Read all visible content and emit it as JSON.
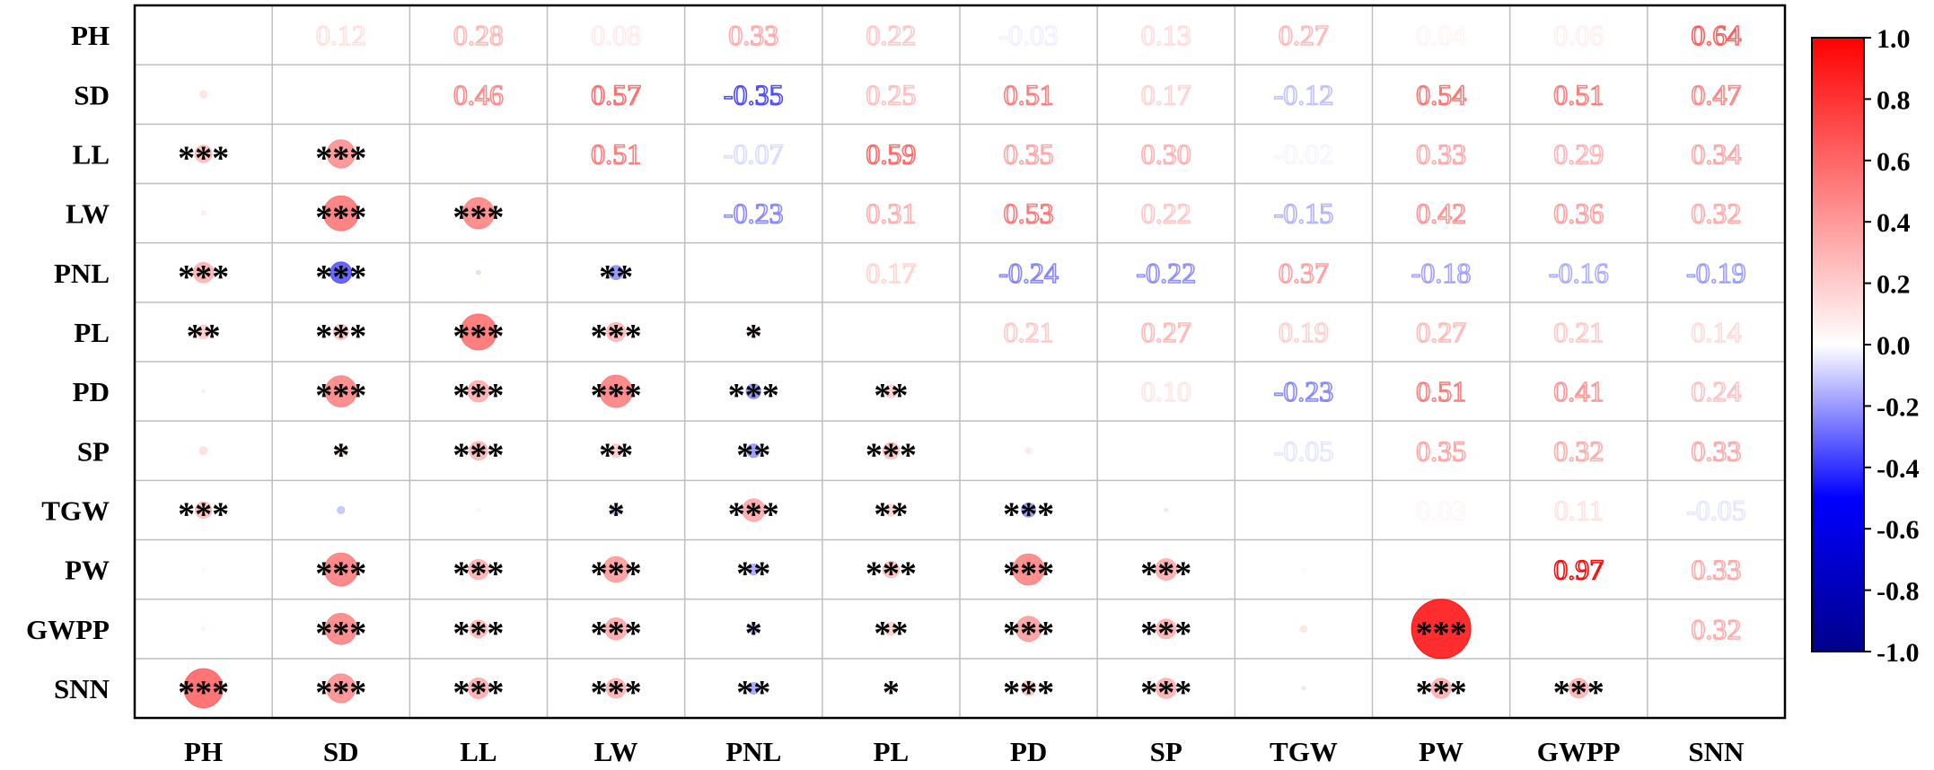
{
  "chart_data": {
    "type": "heatmap",
    "variables": [
      "PH",
      "SD",
      "LL",
      "LW",
      "PNL",
      "PL",
      "PD",
      "SP",
      "TGW",
      "PW",
      "GWPP",
      "SNN"
    ],
    "row_labels": [
      "PH",
      "SD",
      "LL",
      "LW",
      "PNL",
      "PL",
      "PD",
      "SP",
      "TGW",
      "PW",
      "GWPP",
      "SNN"
    ],
    "col_labels": [
      "PH",
      "SD",
      "LL",
      "LW",
      "PNL",
      "PL",
      "PD",
      "SP",
      "TGW",
      "PW",
      "GWPP",
      "SNN"
    ],
    "upper_triangle": "printed correlation coefficients",
    "lower_triangle": "circles sized and colored by correlation with significance stars",
    "matrix": [
      [
        null,
        0.12,
        0.28,
        0.08,
        0.33,
        0.22,
        -0.03,
        0.13,
        0.27,
        0.04,
        0.06,
        0.64
      ],
      [
        0.12,
        null,
        0.46,
        0.57,
        -0.35,
        0.25,
        0.51,
        0.17,
        -0.12,
        0.54,
        0.51,
        0.47
      ],
      [
        0.28,
        0.46,
        null,
        0.51,
        -0.07,
        0.59,
        0.35,
        0.3,
        -0.02,
        0.33,
        0.29,
        0.34
      ],
      [
        0.08,
        0.57,
        0.51,
        null,
        -0.23,
        0.31,
        0.53,
        0.22,
        -0.15,
        0.42,
        0.36,
        0.32
      ],
      [
        0.33,
        -0.35,
        -0.07,
        -0.23,
        null,
        0.17,
        -0.24,
        -0.22,
        0.37,
        -0.18,
        -0.16,
        -0.19
      ],
      [
        0.22,
        0.25,
        0.59,
        0.31,
        0.17,
        null,
        0.21,
        0.27,
        0.19,
        0.27,
        0.21,
        0.14
      ],
      [
        -0.03,
        0.51,
        0.35,
        0.53,
        -0.24,
        0.21,
        null,
        0.1,
        -0.23,
        0.51,
        0.41,
        0.24
      ],
      [
        0.13,
        0.17,
        0.3,
        0.22,
        -0.22,
        0.27,
        0.1,
        null,
        -0.05,
        0.35,
        0.32,
        0.33
      ],
      [
        0.27,
        -0.12,
        -0.02,
        -0.15,
        0.37,
        0.19,
        -0.23,
        -0.05,
        null,
        0.03,
        0.11,
        -0.05
      ],
      [
        0.04,
        0.54,
        0.33,
        0.42,
        -0.18,
        0.27,
        0.51,
        0.35,
        0.03,
        null,
        0.97,
        0.33
      ],
      [
        0.06,
        0.51,
        0.29,
        0.36,
        -0.16,
        0.21,
        0.41,
        0.32,
        0.11,
        0.97,
        null,
        0.32
      ],
      [
        0.64,
        0.47,
        0.34,
        0.32,
        -0.19,
        0.14,
        0.24,
        0.33,
        -0.05,
        0.33,
        0.32,
        null
      ]
    ],
    "value_labels": [
      [
        null,
        "0.12",
        "0.28",
        "0.08",
        "0.33",
        "0.22",
        "-0.03",
        "0.13",
        "0.27",
        "0.04",
        "0.06",
        "0.64"
      ],
      [
        null,
        null,
        "0.46",
        "0.57",
        "-0.35",
        "0.25",
        "0.51",
        "0.17",
        "-0.12",
        "0.54",
        "0.51",
        "0.47"
      ],
      [
        null,
        null,
        null,
        "0.51",
        "-0.07",
        "0.59",
        "0.35",
        "0.30",
        "-0.02",
        "0.33",
        "0.29",
        "0.34"
      ],
      [
        null,
        null,
        null,
        null,
        "-0.23",
        "0.31",
        "0.53",
        "0.22",
        "-0.15",
        "0.42",
        "0.36",
        "0.32"
      ],
      [
        null,
        null,
        null,
        null,
        null,
        "0.17",
        "-0.24",
        "-0.22",
        "0.37",
        "-0.18",
        "-0.16",
        "-0.19"
      ],
      [
        null,
        null,
        null,
        null,
        null,
        null,
        "0.21",
        "0.27",
        "0.19",
        "0.27",
        "0.21",
        "0.14"
      ],
      [
        null,
        null,
        null,
        null,
        null,
        null,
        null,
        "0.10",
        "-0.23",
        "0.51",
        "0.41",
        "0.24"
      ],
      [
        null,
        null,
        null,
        null,
        null,
        null,
        null,
        null,
        "-0.05",
        "0.35",
        "0.32",
        "0.33"
      ],
      [
        null,
        null,
        null,
        null,
        null,
        null,
        null,
        null,
        null,
        "0.03",
        "0.11",
        "-0.05"
      ],
      [
        null,
        null,
        null,
        null,
        null,
        null,
        null,
        null,
        null,
        null,
        "0.97",
        "0.33"
      ],
      [
        null,
        null,
        null,
        null,
        null,
        null,
        null,
        null,
        null,
        null,
        null,
        "0.32"
      ],
      [
        null,
        null,
        null,
        null,
        null,
        null,
        null,
        null,
        null,
        null,
        null,
        null
      ]
    ],
    "significance": [
      [
        null,
        null,
        null,
        null,
        null,
        null,
        null,
        null,
        null,
        null,
        null,
        null
      ],
      [
        "",
        null,
        null,
        null,
        null,
        null,
        null,
        null,
        null,
        null,
        null,
        null
      ],
      [
        "***",
        "***",
        null,
        null,
        null,
        null,
        null,
        null,
        null,
        null,
        null,
        null
      ],
      [
        "",
        "***",
        "***",
        null,
        null,
        null,
        null,
        null,
        null,
        null,
        null,
        null
      ],
      [
        "***",
        "***",
        "",
        "**",
        null,
        null,
        null,
        null,
        null,
        null,
        null,
        null
      ],
      [
        "**",
        "***",
        "***",
        "***",
        "*",
        null,
        null,
        null,
        null,
        null,
        null,
        null
      ],
      [
        "",
        "***",
        "***",
        "***",
        "***",
        "**",
        null,
        null,
        null,
        null,
        null,
        null
      ],
      [
        "",
        "*",
        "***",
        "**",
        "**",
        "***",
        "",
        null,
        null,
        null,
        null,
        null
      ],
      [
        "***",
        "",
        "",
        "*",
        "***",
        "**",
        "***",
        "",
        null,
        null,
        null,
        null
      ],
      [
        "",
        "***",
        "***",
        "***",
        "**",
        "***",
        "***",
        "***",
        "",
        null,
        null,
        null
      ],
      [
        "",
        "***",
        "***",
        "***",
        "*",
        "**",
        "***",
        "***",
        "",
        "***",
        null,
        null
      ],
      [
        "***",
        "***",
        "***",
        "***",
        "**",
        "*",
        "***",
        "***",
        "",
        "***",
        "***",
        null
      ]
    ],
    "colorbar": {
      "range": [
        -1.0,
        1.0
      ],
      "ticks": [
        "1.0",
        "0.8",
        "0.6",
        "0.4",
        "0.2",
        "0.0",
        "-0.2",
        "-0.4",
        "-0.6",
        "-0.8",
        "-1.0"
      ],
      "colors": {
        "negative": "#00008b",
        "low": "#0000ff",
        "neutral": "#ffffff",
        "high": "#ff0000",
        "positive": "#ff0000"
      }
    },
    "grid": true
  }
}
